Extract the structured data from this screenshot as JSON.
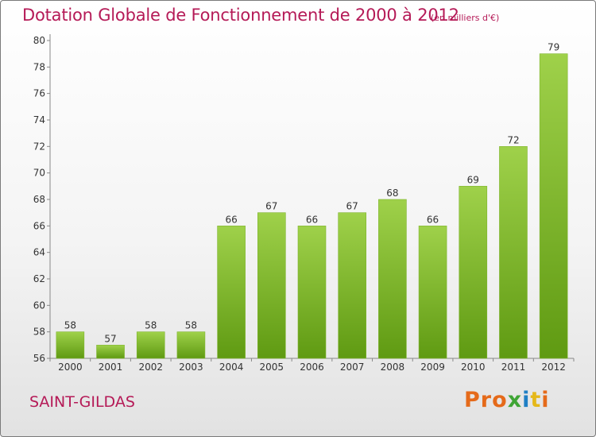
{
  "header": {
    "title": "Dotation Globale de Fonctionnement de 2000 à 2012",
    "subtitle": "(en milliers d'€)"
  },
  "footer": {
    "commune": "SAINT-GILDAS",
    "logo_letters": [
      "P",
      "r",
      "o",
      "x",
      "i",
      "t",
      "i"
    ]
  },
  "colors": {
    "title": "#b51a57",
    "bar_top": "#9fd14a",
    "bar_bottom": "#5f9a12",
    "logo_letters": [
      "#e56a1a",
      "#e56a1a",
      "#e56a1a",
      "#3fa535",
      "#1f7fc4",
      "#e5b81a",
      "#e56a1a"
    ]
  },
  "chart_data": {
    "type": "bar",
    "categories": [
      "2000",
      "2001",
      "2002",
      "2003",
      "2004",
      "2005",
      "2006",
      "2007",
      "2008",
      "2009",
      "2010",
      "2011",
      "2012"
    ],
    "values": [
      58,
      57,
      58,
      58,
      66,
      67,
      66,
      67,
      68,
      66,
      69,
      72,
      79
    ],
    "title": "Dotation Globale de Fonctionnement de 2000 à 2012",
    "subtitle": "(en milliers d'€)",
    "xlabel": "",
    "ylabel": "",
    "ylim": [
      56,
      80
    ],
    "yticks": [
      56,
      58,
      60,
      62,
      64,
      66,
      68,
      70,
      72,
      74,
      76,
      78,
      80
    ],
    "grid": false,
    "data_labels": true
  }
}
